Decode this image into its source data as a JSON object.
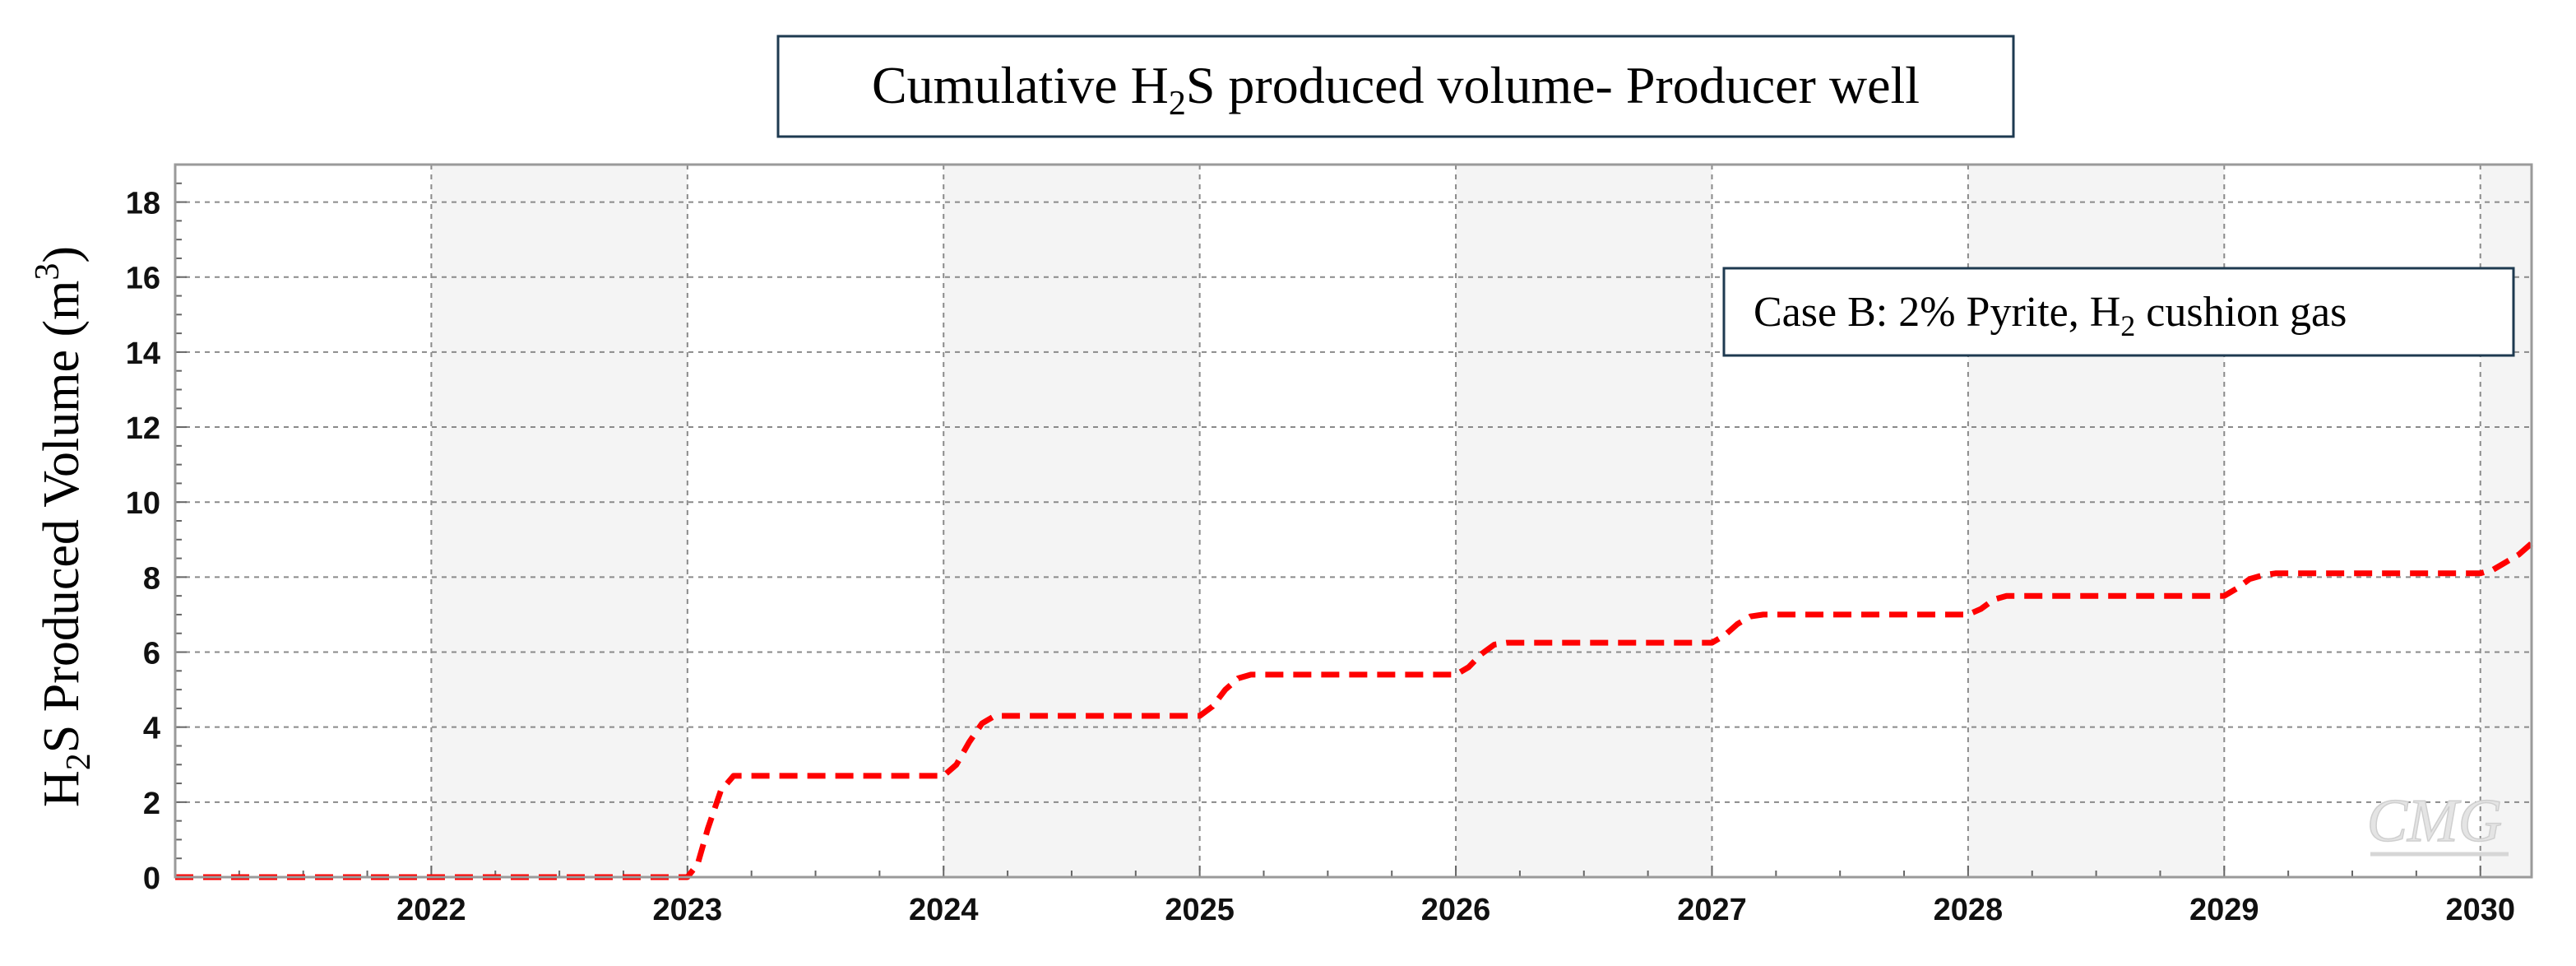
{
  "chart_data": {
    "type": "line",
    "title": {
      "pre": "Cumulative H",
      "sub": "2",
      "post": "S produced volume- Producer well"
    },
    "ylabel": {
      "pre": "H",
      "sub": "2",
      "mid": "S Produced Volume (m",
      "sup": "3",
      "post": ")"
    },
    "annotation": {
      "pre": "Case B: 2% Pyrite, H",
      "sub": "2",
      "post": " cushion gas"
    },
    "watermark": "CMG",
    "xlim": [
      2021.0,
      2030.2
    ],
    "ylim": [
      0,
      19
    ],
    "x_ticks": [
      2022,
      2023,
      2024,
      2025,
      2026,
      2027,
      2028,
      2029,
      2030
    ],
    "x_tick_labels": [
      "2022",
      "2023",
      "2024",
      "2025",
      "2026",
      "2027",
      "2028",
      "2029",
      "2030"
    ],
    "y_ticks": [
      0,
      2,
      4,
      6,
      8,
      10,
      12,
      14,
      16,
      18
    ],
    "y_tick_labels": [
      "0",
      "2",
      "4",
      "6",
      "8",
      "10",
      "12",
      "14",
      "16",
      "18"
    ],
    "grid": true,
    "alternating_year_bands": true,
    "series": [
      {
        "color": "#ff0000",
        "style": "dashed",
        "x": [
          2021.0,
          2023.0,
          2023.04,
          2023.08,
          2023.13,
          2023.18,
          2024.0,
          2024.05,
          2024.1,
          2024.15,
          2024.2,
          2025.0,
          2025.05,
          2025.1,
          2025.15,
          2025.2,
          2026.0,
          2026.05,
          2026.1,
          2026.15,
          2026.2,
          2027.0,
          2027.05,
          2027.1,
          2027.15,
          2027.2,
          2028.0,
          2028.05,
          2028.1,
          2028.15,
          2028.2,
          2029.0,
          2029.05,
          2029.1,
          2029.15,
          2029.2,
          2030.0,
          2030.05,
          2030.1,
          2030.15,
          2030.2
        ],
        "values": [
          0,
          0,
          0.35,
          1.3,
          2.3,
          2.7,
          2.7,
          3.0,
          3.6,
          4.1,
          4.3,
          4.3,
          4.55,
          5.0,
          5.3,
          5.4,
          5.4,
          5.6,
          5.95,
          6.2,
          6.25,
          6.25,
          6.45,
          6.75,
          6.95,
          7.0,
          7.0,
          7.15,
          7.4,
          7.5,
          7.5,
          7.5,
          7.7,
          7.95,
          8.05,
          8.1,
          8.1,
          8.2,
          8.4,
          8.6,
          8.9
        ]
      }
    ]
  }
}
